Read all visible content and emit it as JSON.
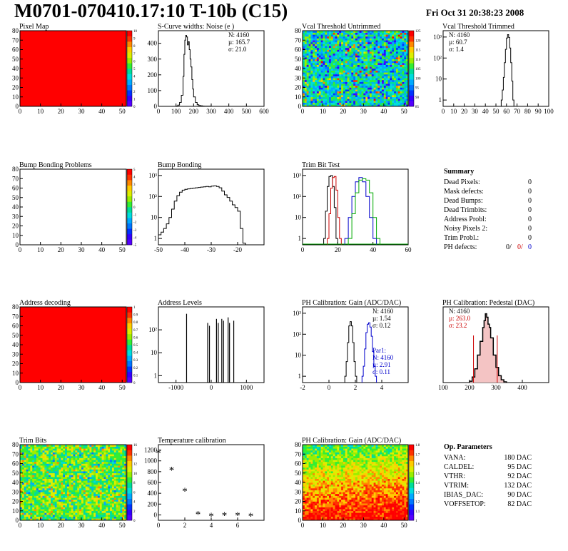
{
  "header": {
    "title": "M0701-070410.17:10 T-10b (C15)",
    "date": "Fri Oct 31 20:38:23 2008"
  },
  "chart_data": [
    {
      "id": "pixel-map",
      "type": "heatmap",
      "title": "Pixel Map",
      "xlim": [
        0,
        52
      ],
      "ylim": [
        0,
        80
      ],
      "xticks": [
        0,
        10,
        20,
        30,
        40,
        50
      ],
      "yticks": [
        0,
        10,
        20,
        30,
        40,
        50,
        60,
        70,
        80
      ],
      "fill": "uniform-max",
      "palette": "root",
      "palette_ticks": [
        "0",
        "1",
        "2",
        "3",
        "4",
        "5",
        "6",
        "7",
        "8",
        "9",
        "10"
      ]
    },
    {
      "id": "scurve-noise",
      "type": "line",
      "title": "S-Curve widths: Noise (e )",
      "xlim": [
        0,
        600
      ],
      "ylim": [
        0,
        480
      ],
      "xticks": [
        0,
        100,
        200,
        300,
        400,
        500,
        600
      ],
      "yticks": [
        0,
        100,
        200,
        300,
        400
      ],
      "x": [
        95,
        100,
        110,
        120,
        130,
        140,
        145,
        150,
        155,
        160,
        165,
        170,
        175,
        180,
        185,
        190,
        195,
        200,
        210,
        220,
        230,
        240,
        250,
        260,
        280,
        300
      ],
      "y": [
        0,
        2,
        8,
        25,
        70,
        190,
        330,
        420,
        450,
        440,
        390,
        410,
        360,
        300,
        250,
        170,
        110,
        60,
        25,
        10,
        5,
        3,
        2,
        1,
        1,
        0
      ],
      "stats": {
        "N": "N: 4160",
        "mean": "µ: 165.7",
        "sigma": "σ: 21.0"
      }
    },
    {
      "id": "vcal-untrimmed",
      "type": "heatmap",
      "title": "Vcal Threshold Untrimmed",
      "xlim": [
        0,
        52
      ],
      "ylim": [
        0,
        80
      ],
      "xticks": [
        0,
        10,
        20,
        30,
        40,
        50
      ],
      "yticks": [
        0,
        10,
        20,
        30,
        40,
        50,
        60,
        70,
        80
      ],
      "fill": "noise-blue-green",
      "palette": "root",
      "palette_ticks": [
        "85",
        "90",
        "95",
        "100",
        "105",
        "110",
        "115",
        "120",
        "125"
      ]
    },
    {
      "id": "vcal-trimmed",
      "type": "line",
      "title": "Vcal Threshold Trimmed",
      "xlim": [
        0,
        100
      ],
      "log": true,
      "ylim": [
        0.5,
        2000
      ],
      "xticks": [
        0,
        10,
        20,
        30,
        40,
        50,
        60,
        70,
        80,
        90,
        100
      ],
      "yticks": [
        "1",
        "10",
        "10²",
        "10³"
      ],
      "x": [
        55,
        56,
        57,
        58,
        59,
        60,
        61,
        62,
        63,
        64,
        65,
        66
      ],
      "y": [
        1,
        3,
        12,
        60,
        260,
        900,
        1300,
        950,
        300,
        60,
        8,
        1
      ],
      "stats": {
        "N": "N: 4160",
        "mean": "µ: 60.7",
        "sigma": "σ:  1.4"
      }
    },
    {
      "id": "bump-bonding-problems",
      "type": "heatmap",
      "title": "Bump Bonding Problems",
      "xlim": [
        0,
        52
      ],
      "ylim": [
        0,
        80
      ],
      "xticks": [
        0,
        10,
        20,
        30,
        40,
        50
      ],
      "yticks": [
        0,
        10,
        20,
        30,
        40,
        50,
        60,
        70,
        80
      ],
      "fill": "empty",
      "palette": "root",
      "palette_ticks": [
        "-5",
        "-4",
        "-3",
        "-2",
        "-1",
        "0",
        "1",
        "2",
        "3",
        "4",
        "5"
      ]
    },
    {
      "id": "bump-bonding",
      "type": "line",
      "title": "Bump Bonding",
      "xlim": [
        -50,
        -10
      ],
      "log": true,
      "ylim": [
        0.5,
        2000
      ],
      "xticks": [
        -50,
        -40,
        -30,
        -20
      ],
      "yticks": [
        "1",
        "10",
        "10²",
        "10³"
      ],
      "x": [
        -50,
        -49,
        -48,
        -47,
        -46,
        -45,
        -44,
        -43,
        -42,
        -41,
        -40,
        -39,
        -38,
        -37,
        -36,
        -35,
        -34,
        -33,
        -32,
        -31,
        -30,
        -29,
        -28,
        -27,
        -26,
        -25,
        -24,
        -23,
        -22,
        -21,
        -20,
        -19,
        -18
      ],
      "y": [
        1.5,
        2,
        3,
        5,
        10,
        25,
        60,
        110,
        160,
        200,
        220,
        230,
        240,
        250,
        260,
        270,
        280,
        290,
        300,
        290,
        310,
        320,
        300,
        260,
        180,
        120,
        90,
        60,
        40,
        30,
        20,
        3,
        0.6
      ],
      "stats": {}
    },
    {
      "id": "trim-bit-test",
      "type": "line",
      "title": "Trim Bit Test",
      "xlim": [
        0,
        60
      ],
      "log": true,
      "ylim": [
        0.5,
        2000
      ],
      "xticks": [
        0,
        20,
        40,
        60
      ],
      "yticks": [
        "1",
        "10",
        "10²",
        "10³"
      ],
      "series": [
        {
          "color": "#000000",
          "x": [
            12,
            13,
            14,
            15,
            16,
            17,
            18,
            19
          ],
          "y": [
            1,
            20,
            300,
            900,
            1000,
            300,
            30,
            1
          ]
        },
        {
          "color": "#cc0000",
          "x": [
            14,
            15,
            16,
            17,
            18,
            19,
            20,
            21
          ],
          "y": [
            1,
            15,
            250,
            800,
            900,
            200,
            10,
            1
          ]
        },
        {
          "color": "#0000cc",
          "x": [
            24,
            26,
            28,
            30,
            32,
            34,
            36,
            38,
            40
          ],
          "y": [
            1,
            10,
            100,
            500,
            800,
            500,
            100,
            10,
            1
          ]
        },
        {
          "color": "#00aa00",
          "x": [
            26,
            28,
            30,
            32,
            34,
            36,
            38,
            40,
            42
          ],
          "y": [
            1,
            15,
            150,
            600,
            700,
            600,
            150,
            10,
            1
          ]
        }
      ],
      "stats": {}
    },
    {
      "id": "summary",
      "type": "table",
      "title": "Summary",
      "rows": [
        {
          "label": "Dead Pixels:",
          "value": "0"
        },
        {
          "label": "Mask defects:",
          "value": "0"
        },
        {
          "label": "Dead Bumps:",
          "value": "0"
        },
        {
          "label": "Dead Trimbits:",
          "value": "0"
        },
        {
          "label": "Address Probl:",
          "value": "0"
        },
        {
          "label": "Noisy Pixels 2:",
          "value": "0"
        },
        {
          "label": "Trim Probl.:",
          "value": "0"
        }
      ],
      "ph_defects": {
        "label": "PH defects:",
        "v1": "0/",
        "v2": "0/",
        "v3": "0",
        "colors": [
          "#000000",
          "#cc0000",
          "#0000cc"
        ]
      }
    },
    {
      "id": "address-decoding",
      "type": "heatmap",
      "title": "Address decoding",
      "xlim": [
        0,
        52
      ],
      "ylim": [
        0,
        80
      ],
      "xticks": [
        0,
        10,
        20,
        30,
        40,
        50
      ],
      "yticks": [
        0,
        10,
        20,
        30,
        40,
        50,
        60,
        70,
        80
      ],
      "fill": "uniform-max",
      "palette": "root",
      "palette_ticks": [
        "0",
        "0.1",
        "0.2",
        "0.3",
        "0.4",
        "0.5",
        "0.6",
        "0.7",
        "0.8",
        "0.9",
        "1"
      ]
    },
    {
      "id": "address-levels",
      "type": "line",
      "title": "Address Levels",
      "xlim": [
        -1500,
        1500
      ],
      "log": true,
      "ylim": [
        0.5,
        1000
      ],
      "xticks": [
        -1000,
        0,
        1000
      ],
      "yticks": [
        "1",
        "10",
        "10²"
      ],
      "spikes": [
        -700,
        -100,
        -50,
        150,
        200,
        300,
        350,
        480,
        520,
        640
      ],
      "spike_heights": [
        500,
        200,
        150,
        300,
        200,
        300,
        250,
        350,
        200,
        250
      ],
      "stats": {}
    },
    {
      "id": "ph-gain",
      "type": "line",
      "title": "PH Calibration: Gain (ADC/DAC)",
      "xlim": [
        -2,
        6
      ],
      "log": true,
      "ylim": [
        0.5,
        2000
      ],
      "xticks": [
        -2,
        0,
        2,
        4
      ],
      "yticks": [
        "1",
        "10",
        "10²",
        "10³"
      ],
      "series": [
        {
          "color": "#000000",
          "x": [
            1.2,
            1.3,
            1.4,
            1.5,
            1.6,
            1.7,
            1.8,
            1.9,
            2.0
          ],
          "y": [
            1,
            5,
            40,
            250,
            400,
            250,
            40,
            5,
            1
          ]
        },
        {
          "color": "#0000cc",
          "x": [
            2.5,
            2.6,
            2.7,
            2.8,
            2.9,
            3.0,
            3.1,
            3.2,
            3.3,
            3.4,
            3.5
          ],
          "y": [
            1,
            3,
            20,
            120,
            300,
            350,
            220,
            80,
            15,
            3,
            1
          ]
        }
      ],
      "stats": {
        "N": "N: 4160",
        "mean": "µ: 1.54",
        "sigma": "σ: 0.12"
      },
      "stats2": {
        "N": "Par1:",
        "mean": "N: 4160",
        "sigma": "µ: 2.91",
        "extra": "σ: 0.11"
      }
    },
    {
      "id": "ph-pedestal",
      "type": "line",
      "title": "PH Calibration: Pedestal (DAC)",
      "xlim": [
        100,
        500
      ],
      "ylim": [
        0,
        110
      ],
      "xticks": [
        100,
        200,
        300,
        400
      ],
      "yticks": [],
      "x": [
        200,
        210,
        220,
        230,
        240,
        250,
        255,
        260,
        265,
        270,
        275,
        280,
        290,
        300,
        310,
        320,
        330
      ],
      "y": [
        2,
        8,
        20,
        40,
        60,
        80,
        90,
        100,
        95,
        85,
        80,
        65,
        40,
        22,
        10,
        4,
        1
      ],
      "stats": {
        "N": "N: 4160",
        "mean": "µ: 263.0",
        "sigma": "σ: 23.2"
      }
    },
    {
      "id": "trim-bits",
      "type": "heatmap",
      "title": "Trim Bits",
      "xlim": [
        0,
        52
      ],
      "ylim": [
        0,
        80
      ],
      "xticks": [
        0,
        10,
        20,
        30,
        40,
        50
      ],
      "yticks": [
        0,
        10,
        20,
        30,
        40,
        50,
        60,
        70,
        80
      ],
      "fill": "noise-green",
      "palette": "root",
      "palette_ticks": [
        "0",
        "2",
        "4",
        "6",
        "8",
        "10",
        "12",
        "14",
        "16"
      ]
    },
    {
      "id": "temperature-calibration",
      "type": "scatter",
      "title": "Temperature calibration",
      "xlim": [
        0,
        8
      ],
      "ylim": [
        -100,
        1300
      ],
      "xticks": [
        0,
        2,
        4,
        6
      ],
      "yticks": [
        0,
        200,
        400,
        600,
        800,
        1000,
        1200
      ],
      "x": [
        0,
        1,
        2,
        3,
        4,
        5,
        6,
        7
      ],
      "y": [
        1150,
        830,
        440,
        10,
        -20,
        -10,
        -10,
        -20
      ]
    },
    {
      "id": "ph-gain-2d",
      "type": "heatmap",
      "title": "PH Calibration: Gain (ADC/DAC)",
      "xlim": [
        0,
        52
      ],
      "ylim": [
        0,
        80
      ],
      "xticks": [
        0,
        10,
        20,
        30,
        40,
        50
      ],
      "yticks": [
        0,
        10,
        20,
        30,
        40,
        50,
        60,
        70,
        80
      ],
      "fill": "gradient-red-green",
      "palette": "root",
      "palette_ticks": [
        "1",
        "1.1",
        "1.2",
        "1.3",
        "1.4",
        "1.5",
        "1.6",
        "1.7",
        "1.8"
      ]
    },
    {
      "id": "op-parameters",
      "type": "table",
      "title": "Op. Parameters",
      "rows": [
        {
          "label": "VANA:",
          "value": "180 DAC"
        },
        {
          "label": "CALDEL:",
          "value": "95 DAC"
        },
        {
          "label": "VTHR:",
          "value": "92 DAC"
        },
        {
          "label": "VTRIM:",
          "value": "132 DAC"
        },
        {
          "label": "IBIAS_DAC:",
          "value": "90 DAC"
        },
        {
          "label": "VOFFSETOP:",
          "value": "82 DAC"
        }
      ]
    }
  ]
}
